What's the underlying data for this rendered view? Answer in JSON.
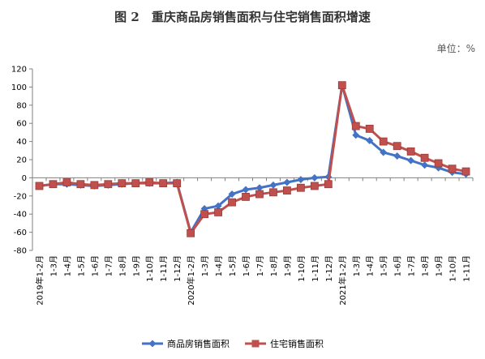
{
  "chart_data": {
    "type": "line",
    "title": "图 2　重庆商品房销售面积与住宅销售面积增速",
    "unit": "单位：%",
    "ylim": [
      -80,
      120
    ],
    "ytick_step": 20,
    "grid": false,
    "legend_position": "bottom",
    "categories": [
      "2019年1-2月",
      "1-3月",
      "1-4月",
      "1-5月",
      "1-6月",
      "1-7月",
      "1-8月",
      "1-9月",
      "1-10月",
      "1-11月",
      "1-12月",
      "2020年1-2月",
      "1-3月",
      "1-4月",
      "1-5月",
      "1-6月",
      "1-7月",
      "1-8月",
      "1-9月",
      "1-10月",
      "1-11月",
      "1-12月",
      "2021年1-2月",
      "1-3月",
      "1-4月",
      "1-5月",
      "1-6月",
      "1-7月",
      "1-8月",
      "1-9月",
      "1-10月",
      "1-11月"
    ],
    "series": [
      {
        "name": "商品房销售面积",
        "color": "#4472C4",
        "marker": "diamond",
        "values": [
          -9,
          -7,
          -7,
          -8,
          -9,
          -8,
          -7,
          -6,
          -6,
          -6,
          -5,
          -60,
          -34,
          -31,
          -18,
          -13,
          -11,
          -8,
          -5,
          -2,
          0,
          1,
          102,
          47,
          41,
          28,
          24,
          19,
          14,
          11,
          6,
          4
        ]
      },
      {
        "name": "住宅销售面积",
        "color": "#C0504D",
        "marker": "square",
        "values": [
          -9,
          -7,
          -5,
          -7,
          -8,
          -7,
          -6,
          -6,
          -5,
          -6,
          -6,
          -61,
          -40,
          -38,
          -27,
          -21,
          -18,
          -16,
          -14,
          -11,
          -9,
          -7,
          102,
          57,
          54,
          40,
          35,
          29,
          22,
          16,
          10,
          7
        ]
      }
    ]
  }
}
